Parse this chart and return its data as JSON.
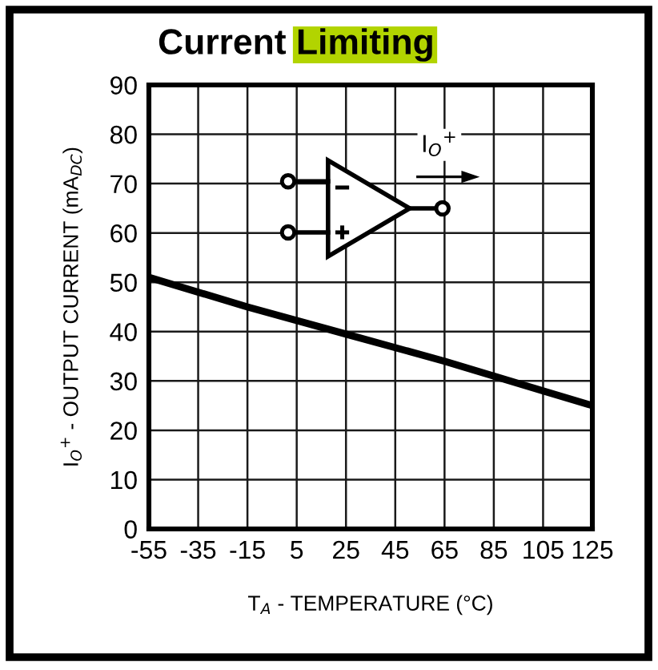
{
  "chart_data": {
    "type": "line",
    "title": "Current Limiting",
    "xlabel": "T$_{A}$ - TEMPERATURE (°C)",
    "ylabel": "I$_{O}$$^{+}$ - OUTPUT CURRENT (mA$_{DC}$)",
    "annotations": [
      "I$_{O}$$^{+}$"
    ],
    "x": [
      -55,
      -15,
      25,
      65,
      105,
      125
    ],
    "series": [
      {
        "color": "#000000",
        "values": [
          51,
          45,
          39.5,
          34,
          28,
          25
        ]
      }
    ],
    "xlim": [
      -55,
      125
    ],
    "ylim": [
      0,
      90
    ],
    "xticks": [
      -55,
      -35,
      -15,
      5,
      25,
      45,
      65,
      85,
      105,
      125
    ],
    "yticks": [
      0,
      10,
      20,
      30,
      40,
      50,
      60,
      70,
      80,
      90
    ],
    "grid": true,
    "line_style": "solid"
  }
}
